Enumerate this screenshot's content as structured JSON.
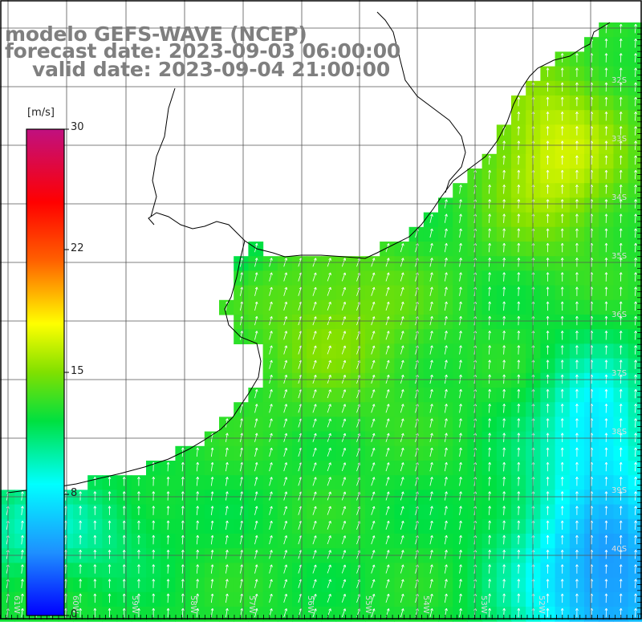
{
  "title": {
    "model": "modelo GEFS-WAVE (NCEP)",
    "forecast": "forecast date: 2023-09-03 06:00:00",
    "valid": "valid date: 2023-09-04 21:00:00"
  },
  "colorbar": {
    "unit": "[m/s]",
    "ticks": [
      "30",
      "22",
      "15",
      "8",
      "0"
    ],
    "min": 0,
    "max": 30
  },
  "map": {
    "lat_labels": [
      "32S",
      "33S",
      "34S",
      "35S",
      "36S",
      "37S",
      "38S",
      "39S",
      "40S"
    ],
    "lon_labels": [
      "61W",
      "60W",
      "59W",
      "58W",
      "57W",
      "56W",
      "55W",
      "54W",
      "53W",
      "52W"
    ],
    "colors": {
      "land": "#ffffff",
      "grid": "#555555",
      "coast": "#000000",
      "arrows": "#ffffff"
    }
  }
}
